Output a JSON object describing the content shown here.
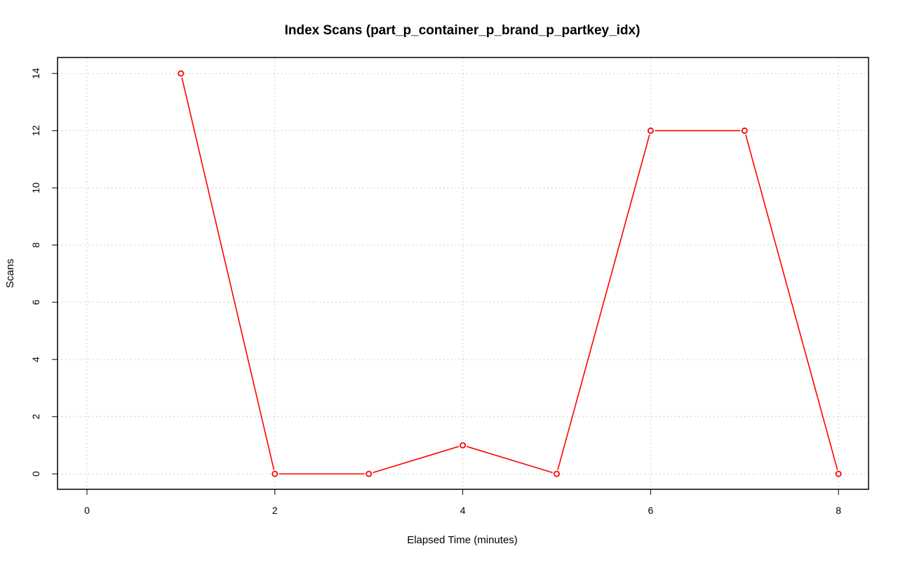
{
  "chart_data": {
    "type": "line",
    "title": "Index Scans (part_p_container_p_brand_p_partkey_idx)",
    "xlabel": "Elapsed Time (minutes)",
    "ylabel": "Scans",
    "xlim": [
      0,
      8
    ],
    "ylim": [
      0,
      14
    ],
    "x_ticks": [
      "0",
      "2",
      "4",
      "6",
      "8"
    ],
    "y_ticks": [
      "0",
      "2",
      "4",
      "6",
      "8",
      "10",
      "12",
      "14"
    ],
    "grid": true,
    "legend": "none",
    "series": [
      {
        "color": "#ff0000",
        "marker": "open-circle",
        "x": [
          1,
          2,
          3,
          4,
          5,
          6,
          7,
          8
        ],
        "values": [
          14,
          0,
          0,
          1,
          0,
          12,
          12,
          0
        ]
      }
    ]
  }
}
